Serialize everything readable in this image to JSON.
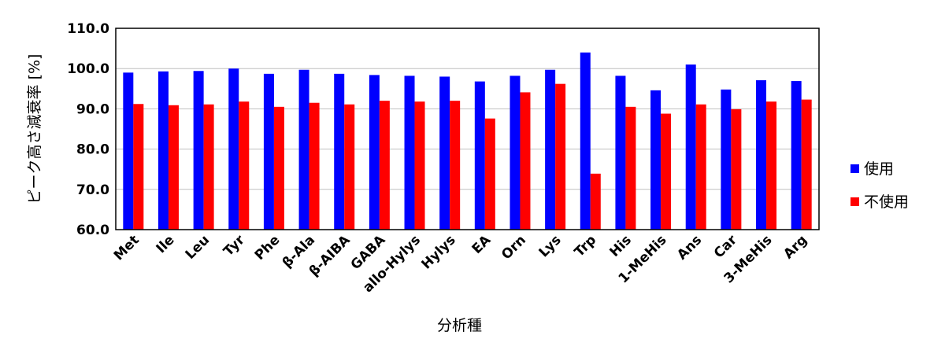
{
  "chart_data": {
    "type": "bar",
    "ylabel": "ピーク高さ減衰率 [%]",
    "xlabel": "分析種",
    "ylim": [
      60,
      110
    ],
    "yticks": [
      "60.0",
      "70.0",
      "80.0",
      "90.0",
      "100.0",
      "110.0"
    ],
    "ytick_values": [
      60,
      70,
      80,
      90,
      100,
      110
    ],
    "grid": true,
    "legend_position": "right",
    "categories": [
      "Met",
      "Ile",
      "Leu",
      "Tyr",
      "Phe",
      "β-Ala",
      "β-AIBA",
      "GABA",
      "allo-Hylys",
      "Hylys",
      "EA",
      "Orn",
      "Lys",
      "Trp",
      "His",
      "1-MeHis",
      "Ans",
      "Car",
      "3-MeHis",
      "Arg"
    ],
    "series": [
      {
        "name": "使用",
        "color": "#0000ff",
        "values": [
          99.0,
          99.3,
          99.4,
          100.0,
          98.7,
          99.7,
          98.7,
          98.4,
          98.2,
          98.0,
          96.8,
          98.2,
          99.7,
          104.0,
          98.2,
          94.6,
          101.0,
          94.8,
          97.1,
          96.9
        ]
      },
      {
        "name": "不使用",
        "color": "#ff0000",
        "values": [
          91.2,
          90.9,
          91.1,
          91.8,
          90.5,
          91.5,
          91.1,
          92.0,
          91.8,
          92.0,
          87.6,
          94.1,
          96.2,
          73.9,
          90.5,
          88.8,
          91.1,
          89.9,
          91.8,
          92.3
        ]
      }
    ]
  }
}
